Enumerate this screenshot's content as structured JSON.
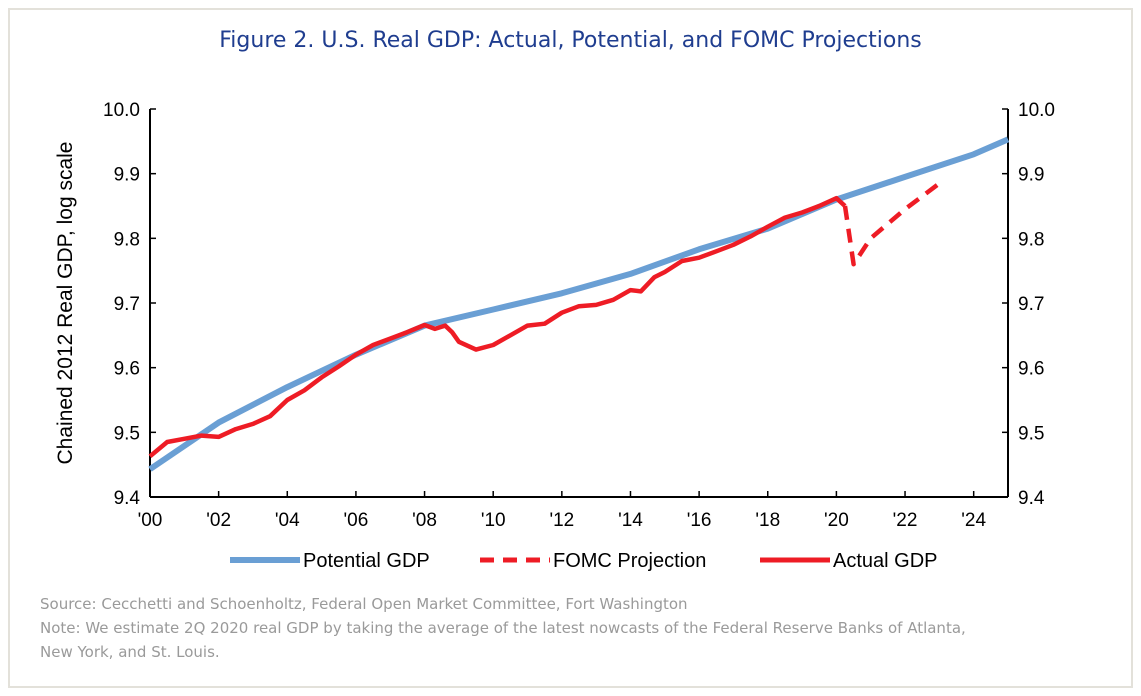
{
  "chart_data": {
    "type": "line",
    "title": "Figure 2. U.S. Real GDP: Actual, Potential, and FOMC Projections",
    "ylabel": "Chained 2012 Real GDP, log scale",
    "xlabel": "",
    "xlim": [
      2000,
      2025
    ],
    "ylim": [
      9.4,
      10.0
    ],
    "x_ticks": [
      "'00",
      "'02",
      "'04",
      "'06",
      "'08",
      "'10",
      "'12",
      "'14",
      "'16",
      "'18",
      "'20",
      "'22",
      "'24"
    ],
    "y_ticks": [
      "9.4",
      "9.5",
      "9.6",
      "9.7",
      "9.8",
      "9.9",
      "10.0"
    ],
    "y_axes": [
      "left",
      "right"
    ],
    "grid": false,
    "legend_position": "bottom",
    "series": [
      {
        "name": "Potential GDP",
        "color": "#6a9fd4",
        "style": "solid",
        "x": [
          2000,
          2002,
          2004,
          2006,
          2008,
          2010,
          2012,
          2014,
          2016,
          2018,
          2020,
          2022,
          2024,
          2025
        ],
        "y": [
          9.443,
          9.515,
          9.57,
          9.62,
          9.665,
          9.69,
          9.715,
          9.745,
          9.783,
          9.815,
          9.86,
          9.895,
          9.93,
          9.953
        ]
      },
      {
        "name": "FOMC Projection",
        "color": "#ee1c25",
        "style": "dashed",
        "x": [
          2020.25,
          2020.5,
          2021,
          2022,
          2023
        ],
        "y": [
          9.85,
          9.76,
          9.8,
          9.845,
          9.885
        ]
      },
      {
        "name": "Actual GDP",
        "color": "#ee1c25",
        "style": "solid",
        "x": [
          2000,
          2000.5,
          2001,
          2001.5,
          2002,
          2002.5,
          2003,
          2003.5,
          2004,
          2004.5,
          2005,
          2005.5,
          2006,
          2006.5,
          2007,
          2007.5,
          2008,
          2008.3,
          2008.6,
          2008.8,
          2009,
          2009.5,
          2010,
          2010.5,
          2011,
          2011.5,
          2012,
          2012.5,
          2013,
          2013.5,
          2014,
          2014.3,
          2014.7,
          2015,
          2015.5,
          2016,
          2016.5,
          2017,
          2017.5,
          2018,
          2018.5,
          2019,
          2019.5,
          2020,
          2020.25
        ],
        "y": [
          9.463,
          9.485,
          9.49,
          9.495,
          9.493,
          9.505,
          9.513,
          9.525,
          9.55,
          9.565,
          9.585,
          9.602,
          9.62,
          9.635,
          9.645,
          9.655,
          9.666,
          9.66,
          9.665,
          9.655,
          9.64,
          9.628,
          9.635,
          9.65,
          9.665,
          9.668,
          9.685,
          9.695,
          9.697,
          9.705,
          9.72,
          9.718,
          9.74,
          9.748,
          9.765,
          9.77,
          9.78,
          9.79,
          9.803,
          9.818,
          9.832,
          9.84,
          9.85,
          9.862,
          9.85
        ]
      }
    ]
  },
  "notes": {
    "source": "Source: Cecchetti and Schoenholtz, Federal Open Market Committee, Fort Washington",
    "note_line1": "Note: We estimate 2Q 2020 real GDP by taking the average of the latest nowcasts of the Federal Reserve Banks of Atlanta,",
    "note_line2": "New York, and St. Louis."
  }
}
